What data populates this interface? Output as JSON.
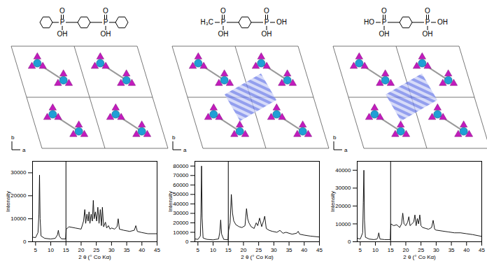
{
  "chart_data": [
    {
      "type": "line",
      "xlabel": "2 θ (° Co Kα)",
      "ylabel": "Intensity",
      "color": "#000000",
      "xlim": [
        4,
        45
      ],
      "xticks": [
        5,
        10,
        15,
        20,
        25,
        30,
        35,
        40,
        45
      ],
      "ylim": [
        0,
        35000
      ],
      "yticks": [
        0,
        10000,
        20000,
        30000
      ],
      "divider": 15,
      "x": [
        4,
        5,
        5.8,
        6.1,
        6.3,
        6.5,
        6.8,
        8,
        10,
        11.5,
        12.2,
        12.5,
        12.8,
        13.5,
        14.9,
        15.1,
        16,
        18,
        20,
        20.8,
        21.2,
        21.5,
        21.9,
        22.3,
        22.6,
        22.9,
        23.3,
        23.7,
        24,
        24.3,
        24.7,
        25.1,
        25.5,
        25.9,
        26.3,
        26.7,
        27,
        27.4,
        28,
        28.4,
        29,
        29.5,
        30,
        31,
        31.8,
        32.2,
        32.6,
        34,
        36,
        37.5,
        38,
        38.5,
        40,
        42,
        45
      ],
      "values": [
        2000,
        1800,
        4000,
        12000,
        29000,
        10000,
        2500,
        1500,
        1200,
        1500,
        3000,
        5000,
        2500,
        1300,
        1200,
        5500,
        6500,
        6000,
        5500,
        9000,
        14000,
        8000,
        12000,
        9000,
        13000,
        8000,
        12000,
        9000,
        18000,
        10000,
        13000,
        9000,
        15000,
        8000,
        14000,
        7000,
        15000,
        6500,
        8500,
        6000,
        7000,
        5500,
        6000,
        5500,
        6500,
        10000,
        5500,
        5000,
        4500,
        5000,
        7000,
        4500,
        4000,
        3500,
        3500
      ]
    },
    {
      "type": "line",
      "xlabel": "2 θ (° Co Kα)",
      "ylabel": "Intensity",
      "color": "#000000",
      "xlim": [
        4,
        45
      ],
      "xticks": [
        5,
        10,
        15,
        20,
        25,
        30,
        35,
        40,
        45
      ],
      "ylim": [
        0,
        85000
      ],
      "yticks": [
        0,
        10000,
        20000,
        30000,
        40000,
        50000,
        60000,
        70000,
        80000
      ],
      "divider": 15,
      "x": [
        4,
        5,
        5.8,
        6.0,
        6.2,
        6.4,
        6.7,
        8,
        10,
        11.8,
        12.2,
        12.5,
        12.8,
        13.5,
        14.9,
        15.1,
        15.6,
        16.0,
        16.4,
        16.8,
        17.5,
        18.5,
        19.5,
        20.5,
        21.0,
        21.4,
        21.8,
        22.5,
        23.5,
        24.2,
        24.7,
        25.3,
        26.0,
        26.6,
        27.0,
        27.5,
        28.5,
        29.5,
        31,
        32,
        33,
        34,
        36,
        37.5,
        38,
        38.5,
        40,
        42,
        45
      ],
      "values": [
        3000,
        2500,
        6000,
        30000,
        80000,
        25000,
        4000,
        2500,
        2000,
        3000,
        10000,
        23000,
        8000,
        2500,
        2000,
        12000,
        20000,
        50000,
        30000,
        22000,
        18000,
        16000,
        15000,
        17000,
        35000,
        24000,
        20000,
        16000,
        14000,
        20000,
        17000,
        25000,
        16000,
        22000,
        27000,
        14000,
        12000,
        11000,
        10000,
        12000,
        9000,
        10000,
        8000,
        9000,
        11000,
        8000,
        7000,
        6000,
        5000
      ]
    },
    {
      "type": "line",
      "xlabel": "2 θ (° Co Kα)",
      "ylabel": "Intensity",
      "color": "#000000",
      "xlim": [
        4,
        45
      ],
      "xticks": [
        5,
        10,
        15,
        20,
        25,
        30,
        35,
        40,
        45
      ],
      "ylim": [
        0,
        45000
      ],
      "yticks": [
        0,
        10000,
        20000,
        30000,
        40000
      ],
      "divider": 15,
      "x": [
        4,
        5,
        5.8,
        6.0,
        6.2,
        6.4,
        6.7,
        8,
        9.5,
        10.5,
        10.8,
        11.1,
        11.5,
        13,
        14.9,
        15.1,
        16,
        17,
        18,
        18.6,
        19,
        19.4,
        20,
        20.6,
        21,
        21.4,
        22,
        22.6,
        23,
        23.4,
        23.8,
        24.2,
        24.6,
        25,
        25.5,
        26.5,
        27.5,
        28.5,
        29,
        29.5,
        30,
        32,
        34,
        36,
        38,
        40,
        42,
        45
      ],
      "values": [
        2000,
        1500,
        5000,
        22000,
        40000,
        12000,
        2500,
        1500,
        1200,
        1500,
        2500,
        5000,
        1500,
        1200,
        1200,
        10000,
        9000,
        9500,
        8000,
        10000,
        16000,
        10000,
        9000,
        11000,
        14000,
        9000,
        10000,
        11000,
        15000,
        9000,
        13000,
        10000,
        15000,
        9000,
        8000,
        7500,
        7000,
        8000,
        12000,
        7000,
        6500,
        6000,
        5500,
        5000,
        5000,
        4500,
        4000,
        3000
      ]
    }
  ],
  "structures": {
    "phosphorus": "P",
    "oxygen": "O",
    "hydroxyl": "OH",
    "molecules": [
      {
        "left": null,
        "right": null
      },
      {
        "left": "H₃C",
        "right": "OH"
      },
      {
        "left": "HO",
        "right": "OH"
      }
    ]
  },
  "frameworks": {
    "axis_labels": [
      "b",
      "a"
    ],
    "pores": [
      false,
      true,
      true
    ]
  }
}
